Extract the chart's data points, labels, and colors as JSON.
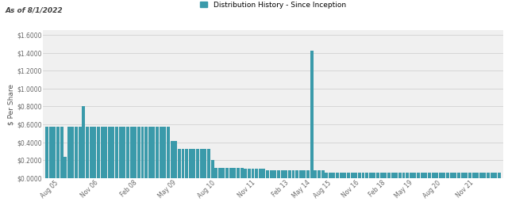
{
  "title": "As of 8/1/2022",
  "legend_label": "Distribution History - Since Inception",
  "ylabel": "$ Per Share",
  "bar_color": "#3a9aaa",
  "background_color": "#ffffff",
  "plot_bg_color": "#f0f0f0",
  "ylim": [
    0,
    1.65
  ],
  "yticks": [
    0.0,
    0.2,
    0.4,
    0.6,
    0.8,
    1.0,
    1.2,
    1.4,
    1.6
  ],
  "ytick_labels": [
    "$0.0000",
    "$0.2000",
    "$0.4000",
    "$0.6000",
    "$0.8000",
    "$1.0000",
    "$1.2000",
    "$1.4000",
    "$1.6000"
  ],
  "xtick_labels": [
    "Aug 05",
    "Nov 06",
    "Feb 08",
    "May 09",
    "Aug 10",
    "Nov 11",
    "Feb 13",
    "May 14",
    "Aug 15",
    "Nov 16",
    "Feb 18",
    "May 19",
    "Aug 20",
    "Nov 21"
  ],
  "values": [
    0.575,
    0.575,
    0.575,
    0.575,
    0.575,
    0.235,
    0.575,
    0.575,
    0.575,
    0.575,
    0.8,
    0.575,
    0.575,
    0.575,
    0.575,
    0.575,
    0.575,
    0.575,
    0.575,
    0.575,
    0.575,
    0.575,
    0.575,
    0.575,
    0.575,
    0.575,
    0.575,
    0.575,
    0.575,
    0.575,
    0.575,
    0.575,
    0.575,
    0.575,
    0.41,
    0.41,
    0.325,
    0.325,
    0.325,
    0.325,
    0.325,
    0.325,
    0.325,
    0.325,
    0.325,
    0.2,
    0.115,
    0.115,
    0.115,
    0.115,
    0.115,
    0.115,
    0.115,
    0.115,
    0.105,
    0.105,
    0.105,
    0.105,
    0.105,
    0.105,
    0.09,
    0.09,
    0.09,
    0.09,
    0.09,
    0.09,
    0.09,
    0.09,
    0.09,
    0.09,
    0.09,
    0.09,
    1.42,
    0.09,
    0.09,
    0.09,
    0.06,
    0.06,
    0.06,
    0.06,
    0.06,
    0.06,
    0.055,
    0.055,
    0.055,
    0.055,
    0.055,
    0.055,
    0.055,
    0.055,
    0.055,
    0.055,
    0.055,
    0.055,
    0.055,
    0.055,
    0.055,
    0.055,
    0.055,
    0.055,
    0.055,
    0.055,
    0.055,
    0.055,
    0.055,
    0.055,
    0.055,
    0.055,
    0.055,
    0.055,
    0.055,
    0.055,
    0.055,
    0.055,
    0.055,
    0.055,
    0.055,
    0.055,
    0.055,
    0.055,
    0.055,
    0.055,
    0.055,
    0.055
  ],
  "xtick_positions_frac": [
    0.017,
    0.105,
    0.192,
    0.278,
    0.365,
    0.453,
    0.527,
    0.574,
    0.621,
    0.682,
    0.741,
    0.8,
    0.862,
    0.935
  ]
}
